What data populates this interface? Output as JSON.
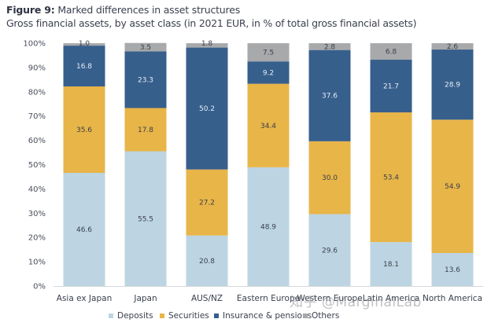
{
  "header": {
    "figure_label": "Figure 9:",
    "title": "Marked differences in asset structures",
    "subtitle": "Gross financial assets, by asset class (in 2021 EUR, in % of total gross financial assets)"
  },
  "watermark": "知乎 @MarginalLab",
  "colors": {
    "Deposits": "#bdd5e2",
    "Securities": "#e8b548",
    "Insurance & pensions": "#375f8c",
    "Others": "#a8a9ab",
    "label_dark": "#3a3f4c",
    "label_light": "#e6ecf4"
  },
  "chart_data": {
    "type": "bar",
    "stacked": true,
    "title": "Marked differences in asset structures",
    "subtitle": "Gross financial assets, by asset class (in 2021 EUR, in % of total gross financial assets)",
    "xlabel": "",
    "ylabel": "",
    "ylim": [
      0,
      100
    ],
    "yticks": [
      0,
      10,
      20,
      30,
      40,
      50,
      60,
      70,
      80,
      90,
      100
    ],
    "ytick_labels": [
      "0%",
      "10%",
      "20%",
      "30%",
      "40%",
      "50%",
      "60%",
      "70%",
      "80%",
      "90%",
      "100%"
    ],
    "grid": false,
    "legend_position": "bottom",
    "categories": [
      "Asia ex Japan",
      "Japan",
      "AUS/NZ",
      "Eastern Europe",
      "Western Europe",
      "Latin America",
      "North America"
    ],
    "series": [
      {
        "name": "Deposits",
        "values": [
          46.6,
          55.5,
          20.8,
          48.9,
          29.6,
          18.1,
          13.6
        ]
      },
      {
        "name": "Securities",
        "values": [
          35.6,
          17.8,
          27.2,
          34.4,
          30.0,
          53.4,
          54.9
        ]
      },
      {
        "name": "Insurance & pensions",
        "values": [
          16.8,
          23.3,
          50.2,
          9.2,
          37.6,
          21.7,
          28.9
        ]
      },
      {
        "name": "Others",
        "values": [
          1.0,
          3.5,
          1.8,
          7.5,
          2.8,
          6.8,
          2.6
        ]
      }
    ],
    "data_labels": [
      [
        "46.6",
        "55.5",
        "20.8",
        "48.9",
        "29.6",
        "18.1",
        "13.6"
      ],
      [
        "35.6",
        "17.8",
        "27.2",
        "34.4",
        "30.0",
        "53.4",
        "54.9"
      ],
      [
        "16.8",
        "23.3",
        "50.2",
        "9.2",
        "37.6",
        "21.7",
        "28.9"
      ],
      [
        "1.0",
        "3.5",
        "1.8",
        "7.5",
        "2.8",
        "6.8",
        "2.6"
      ]
    ]
  }
}
